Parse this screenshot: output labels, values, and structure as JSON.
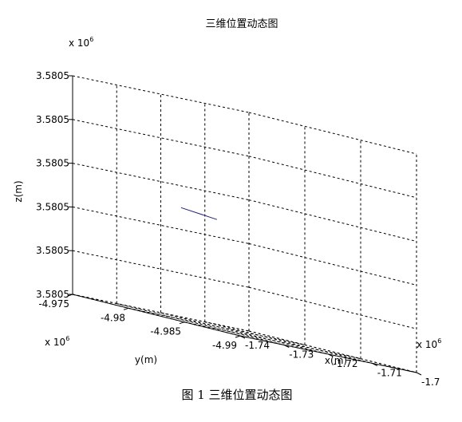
{
  "chart_data": {
    "type": "line",
    "projection": "3d",
    "title": "三维位置动态图",
    "xlabel": "x(m)",
    "ylabel": "y(m)",
    "zlabel": "z(m)",
    "x_ticks": [
      "-1.74",
      "-1.73",
      "-1.72",
      "-1.71",
      "-1.7"
    ],
    "y_ticks": [
      "-4.975",
      "-4.98",
      "-4.985",
      "-4.99"
    ],
    "z_ticks": [
      "3.5805",
      "3.5805",
      "3.5805",
      "3.5805",
      "3.5805",
      "3.5805"
    ],
    "x_exponent": "x 10",
    "x_exponent_power": "6",
    "y_exponent": "x 10",
    "y_exponent_power": "6",
    "z_exponent": "x 10",
    "z_exponent_power": "6",
    "grid": true,
    "series": [
      {
        "color": "#1f1f7a",
        "x": [
          -1.7326,
          -1.7154
        ],
        "y": [
          -4.985,
          -4.975
        ],
        "z": [
          3.5805,
          3.5805
        ]
      }
    ]
  },
  "caption": "图 1  三维位置动态图"
}
